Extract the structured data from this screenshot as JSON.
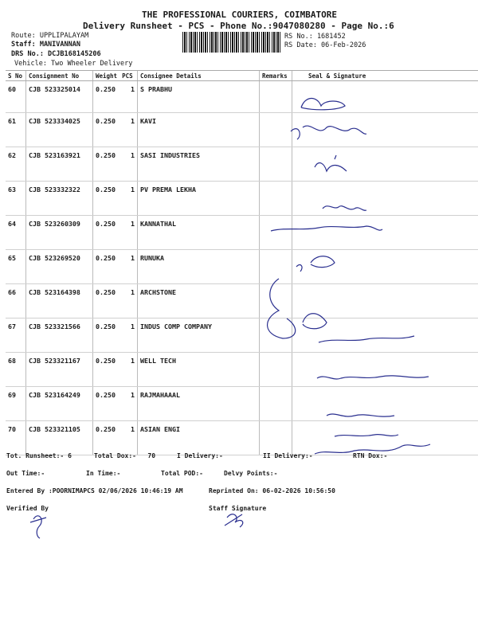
{
  "header": {
    "company": "THE PROFESSIONAL COURIERS, COIMBATORE",
    "subtitle": "Delivery Runsheet - PCS - Phone No.:9047080280 - Page No.:6",
    "route": "Route: UPPLIPALAYAM",
    "staff": "Staff: MANIVANNAN",
    "drs_no": "DRS No.: DCJB168145206",
    "vehicle": "Vehicle: Two Wheeler Delivery",
    "rs_no": "RS No.: 1681452",
    "rs_date": "RS Date: 06-Feb-2026"
  },
  "table": {
    "columns": [
      "S No",
      "Consignment No",
      "Weight",
      "PCS",
      "Consignee Details",
      "Remarks",
      "Seal & Signature"
    ],
    "rows": [
      {
        "sno": "60",
        "cno": "CJB 523325014",
        "weight": "0.250",
        "pcs": "1",
        "consignee": "S PRABHU"
      },
      {
        "sno": "61",
        "cno": "CJB 523334025",
        "weight": "0.250",
        "pcs": "1",
        "consignee": "KAVI"
      },
      {
        "sno": "62",
        "cno": "CJB 523163921",
        "weight": "0.250",
        "pcs": "1",
        "consignee": "SASI INDUSTRIES"
      },
      {
        "sno": "63",
        "cno": "CJB 523332322",
        "weight": "0.250",
        "pcs": "1",
        "consignee": "PV PREMA LEKHA"
      },
      {
        "sno": "64",
        "cno": "CJB 523260309",
        "weight": "0.250",
        "pcs": "1",
        "consignee": "KANNATHAL"
      },
      {
        "sno": "65",
        "cno": "CJB 523269520",
        "weight": "0.250",
        "pcs": "1",
        "consignee": "RUNUKA"
      },
      {
        "sno": "66",
        "cno": "CJB 523164398",
        "weight": "0.250",
        "pcs": "1",
        "consignee": "ARCHSTONE"
      },
      {
        "sno": "67",
        "cno": "CJB 523321566",
        "weight": "0.250",
        "pcs": "1",
        "consignee": "INDUS COMP COMPANY"
      },
      {
        "sno": "68",
        "cno": "CJB 523321167",
        "weight": "0.250",
        "pcs": "1",
        "consignee": "WELL TECH"
      },
      {
        "sno": "69",
        "cno": "CJB 523164249",
        "weight": "0.250",
        "pcs": "1",
        "consignee": "RAJMAHAAAL"
      },
      {
        "sno": "70",
        "cno": "CJB 523321105",
        "weight": "0.250",
        "pcs": "1",
        "consignee": "ASIAN ENGI"
      }
    ]
  },
  "footer": {
    "tot_runsheet": "Tot. Runsheet:- 6",
    "total_dox": "Total Dox:-   70",
    "i_delivery": "I Delivery:-",
    "ii_delivery": "II Delivery:-",
    "rtn_dox": "RTN Dox:-",
    "out_time": "Out Time:-",
    "in_time": "In Time:-",
    "total_pod": "Total POD:-",
    "delvy_points": "Delvy Points:-",
    "entered_by": "Entered By :POORNIMAPCS 02/06/2026 10:46:19 AM",
    "reprinted_on": "Reprinted On: 06-02-2026 10:56:50",
    "verified_by": "Verified By",
    "staff_signature": "Staff Signature"
  },
  "colors": {
    "ink": "#1a1a1a",
    "signature_ink": "#2a2f8f"
  }
}
